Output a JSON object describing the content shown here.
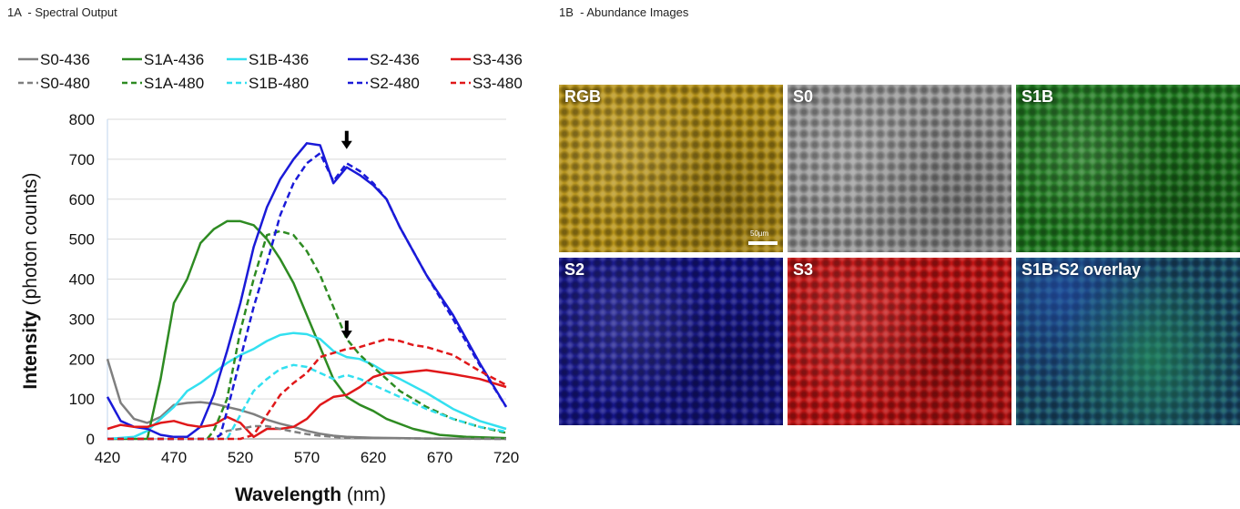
{
  "panels": {
    "a_label": "1A  - Spectral Output",
    "b_label": "1B  - Abundance Images"
  },
  "abundance_images": {
    "tiles": [
      {
        "label": "RGB",
        "color": "#b89418"
      },
      {
        "label": "S0",
        "color": "#9a9a9a"
      },
      {
        "label": "S1B",
        "color": "#1f7a1f"
      },
      {
        "label": "S2",
        "color": "#15158a"
      },
      {
        "label": "S3",
        "color": "#c41414"
      },
      {
        "label": "S1B-S2 overlay",
        "color": "#1a4a6a"
      }
    ],
    "scalebar_label": "50µm"
  },
  "chart_data": {
    "type": "line",
    "xlabel_bold": "Wavelength",
    "xlabel_unit": "(nm)",
    "ylabel_bold": "Intensity",
    "ylabel_unit": "(photon counts)",
    "xlim": [
      420,
      720
    ],
    "ylim": [
      0,
      800
    ],
    "xticks": [
      420,
      470,
      520,
      570,
      620,
      670,
      720
    ],
    "yticks": [
      0,
      100,
      200,
      300,
      400,
      500,
      600,
      700,
      800
    ],
    "grid": "horizontal",
    "legend_position": "top",
    "arrows": [
      {
        "x": 600,
        "y": 730
      },
      {
        "x": 600,
        "y": 255
      }
    ],
    "series": [
      {
        "name": "S0-436",
        "color": "#7f7f7f",
        "dash": false,
        "points": [
          [
            420,
            200
          ],
          [
            430,
            90
          ],
          [
            440,
            50
          ],
          [
            450,
            40
          ],
          [
            460,
            55
          ],
          [
            470,
            85
          ],
          [
            480,
            90
          ],
          [
            490,
            92
          ],
          [
            500,
            88
          ],
          [
            510,
            80
          ],
          [
            520,
            72
          ],
          [
            530,
            62
          ],
          [
            540,
            48
          ],
          [
            550,
            38
          ],
          [
            560,
            30
          ],
          [
            570,
            20
          ],
          [
            580,
            13
          ],
          [
            590,
            8
          ],
          [
            600,
            5
          ],
          [
            620,
            3
          ],
          [
            640,
            2
          ],
          [
            660,
            1
          ],
          [
            720,
            0
          ]
        ]
      },
      {
        "name": "S1A-436",
        "color": "#2e8b22",
        "dash": false,
        "points": [
          [
            420,
            0
          ],
          [
            440,
            0
          ],
          [
            450,
            0
          ],
          [
            460,
            150
          ],
          [
            470,
            340
          ],
          [
            480,
            400
          ],
          [
            490,
            490
          ],
          [
            500,
            525
          ],
          [
            510,
            545
          ],
          [
            520,
            545
          ],
          [
            530,
            535
          ],
          [
            540,
            500
          ],
          [
            550,
            450
          ],
          [
            560,
            390
          ],
          [
            570,
            310
          ],
          [
            580,
            230
          ],
          [
            590,
            150
          ],
          [
            600,
            105
          ],
          [
            610,
            85
          ],
          [
            620,
            70
          ],
          [
            630,
            50
          ],
          [
            650,
            25
          ],
          [
            670,
            10
          ],
          [
            690,
            5
          ],
          [
            720,
            2
          ]
        ]
      },
      {
        "name": "S1B-436",
        "color": "#33e0f0",
        "dash": false,
        "points": [
          [
            420,
            0
          ],
          [
            440,
            5
          ],
          [
            450,
            20
          ],
          [
            460,
            50
          ],
          [
            470,
            80
          ],
          [
            480,
            120
          ],
          [
            490,
            140
          ],
          [
            500,
            165
          ],
          [
            510,
            190
          ],
          [
            520,
            210
          ],
          [
            530,
            225
          ],
          [
            540,
            245
          ],
          [
            550,
            260
          ],
          [
            560,
            265
          ],
          [
            570,
            262
          ],
          [
            580,
            250
          ],
          [
            590,
            220
          ],
          [
            600,
            205
          ],
          [
            610,
            200
          ],
          [
            620,
            185
          ],
          [
            630,
            165
          ],
          [
            640,
            150
          ],
          [
            660,
            115
          ],
          [
            680,
            75
          ],
          [
            700,
            45
          ],
          [
            720,
            25
          ]
        ]
      },
      {
        "name": "S2-436",
        "color": "#1a1ad8",
        "dash": false,
        "points": [
          [
            420,
            105
          ],
          [
            430,
            45
          ],
          [
            440,
            30
          ],
          [
            450,
            25
          ],
          [
            460,
            10
          ],
          [
            470,
            5
          ],
          [
            480,
            5
          ],
          [
            490,
            30
          ],
          [
            500,
            110
          ],
          [
            510,
            220
          ],
          [
            520,
            340
          ],
          [
            530,
            480
          ],
          [
            540,
            580
          ],
          [
            550,
            650
          ],
          [
            560,
            700
          ],
          [
            570,
            740
          ],
          [
            580,
            735
          ],
          [
            590,
            640
          ],
          [
            600,
            680
          ],
          [
            610,
            660
          ],
          [
            620,
            635
          ],
          [
            630,
            600
          ],
          [
            640,
            530
          ],
          [
            660,
            410
          ],
          [
            680,
            310
          ],
          [
            700,
            190
          ],
          [
            720,
            80
          ]
        ]
      },
      {
        "name": "S3-436",
        "color": "#e0181a",
        "dash": false,
        "points": [
          [
            420,
            25
          ],
          [
            430,
            35
          ],
          [
            440,
            30
          ],
          [
            450,
            30
          ],
          [
            460,
            40
          ],
          [
            470,
            45
          ],
          [
            480,
            35
          ],
          [
            490,
            30
          ],
          [
            500,
            35
          ],
          [
            510,
            55
          ],
          [
            520,
            40
          ],
          [
            530,
            5
          ],
          [
            540,
            25
          ],
          [
            550,
            25
          ],
          [
            560,
            30
          ],
          [
            570,
            50
          ],
          [
            580,
            85
          ],
          [
            590,
            105
          ],
          [
            600,
            110
          ],
          [
            610,
            130
          ],
          [
            620,
            155
          ],
          [
            630,
            165
          ],
          [
            640,
            165
          ],
          [
            660,
            172
          ],
          [
            680,
            162
          ],
          [
            700,
            150
          ],
          [
            720,
            130
          ]
        ]
      },
      {
        "name": "S0-480",
        "color": "#7f7f7f",
        "dash": true,
        "points": [
          [
            420,
            0
          ],
          [
            500,
            0
          ],
          [
            510,
            20
          ],
          [
            520,
            25
          ],
          [
            530,
            32
          ],
          [
            540,
            32
          ],
          [
            550,
            25
          ],
          [
            560,
            18
          ],
          [
            570,
            12
          ],
          [
            580,
            8
          ],
          [
            590,
            5
          ],
          [
            600,
            3
          ],
          [
            620,
            2
          ],
          [
            660,
            1
          ],
          [
            720,
            0
          ]
        ]
      },
      {
        "name": "S1A-480",
        "color": "#2e8b22",
        "dash": true,
        "points": [
          [
            420,
            0
          ],
          [
            495,
            0
          ],
          [
            500,
            20
          ],
          [
            510,
            100
          ],
          [
            520,
            270
          ],
          [
            530,
            400
          ],
          [
            540,
            510
          ],
          [
            550,
            520
          ],
          [
            560,
            510
          ],
          [
            570,
            470
          ],
          [
            580,
            410
          ],
          [
            590,
            330
          ],
          [
            600,
            250
          ],
          [
            610,
            210
          ],
          [
            620,
            180
          ],
          [
            630,
            150
          ],
          [
            640,
            120
          ],
          [
            660,
            80
          ],
          [
            680,
            50
          ],
          [
            700,
            30
          ],
          [
            720,
            15
          ]
        ]
      },
      {
        "name": "S1B-480",
        "color": "#33e0f0",
        "dash": true,
        "points": [
          [
            420,
            0
          ],
          [
            510,
            0
          ],
          [
            520,
            60
          ],
          [
            530,
            120
          ],
          [
            540,
            150
          ],
          [
            550,
            175
          ],
          [
            560,
            185
          ],
          [
            570,
            180
          ],
          [
            580,
            165
          ],
          [
            590,
            150
          ],
          [
            600,
            160
          ],
          [
            610,
            150
          ],
          [
            620,
            135
          ],
          [
            630,
            120
          ],
          [
            640,
            105
          ],
          [
            660,
            75
          ],
          [
            680,
            50
          ],
          [
            700,
            30
          ],
          [
            720,
            18
          ]
        ]
      },
      {
        "name": "S2-480",
        "color": "#1a1ad8",
        "dash": true,
        "points": [
          [
            420,
            0
          ],
          [
            500,
            0
          ],
          [
            505,
            10
          ],
          [
            510,
            70
          ],
          [
            520,
            200
          ],
          [
            530,
            330
          ],
          [
            540,
            440
          ],
          [
            550,
            560
          ],
          [
            560,
            640
          ],
          [
            570,
            690
          ],
          [
            580,
            715
          ],
          [
            590,
            645
          ],
          [
            600,
            690
          ],
          [
            610,
            670
          ],
          [
            620,
            640
          ],
          [
            630,
            600
          ],
          [
            640,
            530
          ],
          [
            660,
            410
          ],
          [
            680,
            300
          ],
          [
            700,
            185
          ],
          [
            720,
            80
          ]
        ]
      },
      {
        "name": "S3-480",
        "color": "#e0181a",
        "dash": true,
        "points": [
          [
            420,
            0
          ],
          [
            520,
            0
          ],
          [
            530,
            10
          ],
          [
            540,
            60
          ],
          [
            550,
            110
          ],
          [
            560,
            140
          ],
          [
            570,
            165
          ],
          [
            580,
            205
          ],
          [
            590,
            215
          ],
          [
            600,
            225
          ],
          [
            610,
            230
          ],
          [
            620,
            240
          ],
          [
            630,
            250
          ],
          [
            640,
            245
          ],
          [
            650,
            235
          ],
          [
            660,
            230
          ],
          [
            680,
            210
          ],
          [
            700,
            170
          ],
          [
            720,
            135
          ]
        ]
      }
    ]
  }
}
